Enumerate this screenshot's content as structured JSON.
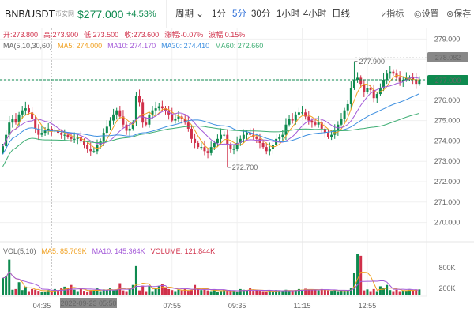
{
  "header": {
    "pair": "BNB/USDT",
    "source": "币安网",
    "price": "$277.000",
    "change": "+4.53%",
    "period_label": "周期 ⌄",
    "timeframes": [
      "1分",
      "5分",
      "30分",
      "1小时",
      "4小时",
      "日线"
    ],
    "active_timeframe": "5分",
    "tools": [
      {
        "icon": "indicator-icon",
        "label": "⩗指标"
      },
      {
        "icon": "settings-icon",
        "label": "◎设置"
      },
      {
        "icon": "save-icon",
        "label": "⊚保存"
      }
    ]
  },
  "ohlc_info": {
    "open": "开:273.800",
    "high": "高:273.900",
    "low": "低:273.500",
    "close": "收:273.600",
    "change": "涨幅:-0.07%",
    "amplitude": "波幅:0.15%"
  },
  "ma_info": {
    "label": "MA(5,10,30,60)",
    "ma5": "MA5: 274.000",
    "ma10": "MA10: 274.170",
    "ma30": "MA30: 274.410",
    "ma60": "MA60: 272.660"
  },
  "vol_info": {
    "label": "VOL(5,10)",
    "ma5": "MA5: 85.709K",
    "ma10": "MA10: 145.364K",
    "volume": "VOLUME: 121.844K"
  },
  "colors": {
    "up": "#0e8a4f",
    "down": "#d0304a",
    "ma5": "#f0a020",
    "ma10": "#a35ad8",
    "ma30": "#3d8fe0",
    "ma60": "#3fae74"
  },
  "chart_data": {
    "type": "candlestick",
    "interval": "5m",
    "price_ticks": [
      "279.000",
      "278.000",
      "277.000",
      "276.000",
      "275.000",
      "274.000",
      "273.000",
      "272.000",
      "271.000",
      "270.000"
    ],
    "price_tick_values": [
      279,
      278,
      277,
      276,
      275,
      274,
      273,
      272,
      271,
      270
    ],
    "volume_ticks": [
      "800K",
      "200K"
    ],
    "volume_tick_values": [
      800,
      200
    ],
    "time_ticks": [
      "04:35",
      "07:55",
      "09:35",
      "11:15",
      "12:55"
    ],
    "time_tick_index": [
      12,
      52,
      72,
      92,
      112
    ],
    "crosshair": {
      "label": "2022-09-23 05:50",
      "index": 15
    },
    "current_price": "277.000",
    "cursor_price": "278.082",
    "max_label": "277.900",
    "max_value": 277.9,
    "max_index": 108,
    "min_label": "272.700",
    "min_value": 272.7,
    "min_index": 69,
    "closes": [
      273.74,
      274.3,
      274.9,
      275.1,
      274.9,
      275.3,
      275.5,
      275.6,
      275.4,
      275.1,
      274.6,
      274.3,
      274.4,
      274.5,
      274.6,
      274.5,
      274.5,
      274.4,
      274.3,
      274.3,
      274.2,
      274.1,
      274.1,
      274.2,
      274.0,
      273.8,
      273.6,
      273.5,
      273.5,
      273.8,
      274.0,
      274.4,
      274.7,
      275.0,
      275.3,
      275.5,
      275.2,
      274.8,
      274.5,
      274.6,
      274.9,
      276.2,
      275.9,
      274.9,
      274.8,
      275.3,
      275.5,
      275.6,
      275.7,
      275.6,
      275.5,
      275.3,
      275.0,
      275.1,
      275.2,
      275.1,
      274.9,
      274.6,
      274.1,
      273.9,
      273.7,
      273.7,
      273.5,
      273.4,
      273.7,
      273.9,
      274.1,
      274.3,
      274.3,
      273.8,
      273.6,
      273.6,
      273.9,
      274.1,
      274.3,
      274.4,
      274.3,
      274.2,
      274.1,
      273.9,
      273.7,
      273.5,
      273.6,
      273.8,
      274.1,
      274.2,
      274.3,
      274.8,
      275.1,
      275.0,
      275.3,
      275.4,
      275.4,
      275.2,
      275.0,
      274.9,
      274.8,
      274.9,
      274.6,
      274.4,
      274.2,
      274.3,
      274.5,
      274.8,
      275.1,
      275.5,
      275.8,
      276.6,
      277.0,
      277.1,
      276.8,
      276.4,
      276.6,
      276.5,
      276.1,
      276.3,
      276.6,
      277.0,
      277.3,
      277.4,
      277.3,
      277.1,
      276.9,
      277.0,
      277.1,
      277.1,
      277.0,
      276.8,
      277.0
    ],
    "volumes_k": [
      500,
      550,
      1040,
      160,
      180,
      380,
      150,
      250,
      120,
      180,
      160,
      130,
      90,
      110,
      150,
      120,
      180,
      130,
      200,
      250,
      220,
      300,
      160,
      120,
      180,
      130,
      110,
      150,
      140,
      200,
      120,
      170,
      160,
      200,
      140,
      160,
      350,
      140,
      120,
      180,
      300,
      850,
      140,
      280,
      120,
      260,
      120,
      200,
      260,
      320,
      230,
      180,
      150,
      120,
      160,
      140,
      180,
      130,
      150,
      300,
      200,
      150,
      160,
      140,
      120,
      170,
      110,
      120,
      160,
      130,
      130,
      120,
      110,
      180,
      160,
      140,
      200,
      130,
      150,
      130,
      120,
      110,
      130,
      110,
      150,
      140,
      130,
      160,
      120,
      140,
      150,
      180,
      160,
      190,
      170,
      150,
      160,
      140,
      180,
      160,
      140,
      130,
      150,
      120,
      140,
      130,
      150,
      200,
      660,
      1200,
      1150,
      140,
      170,
      120,
      180,
      120,
      260,
      200,
      300,
      150,
      120,
      160,
      120,
      130,
      140,
      160,
      150,
      170,
      170
    ]
  }
}
